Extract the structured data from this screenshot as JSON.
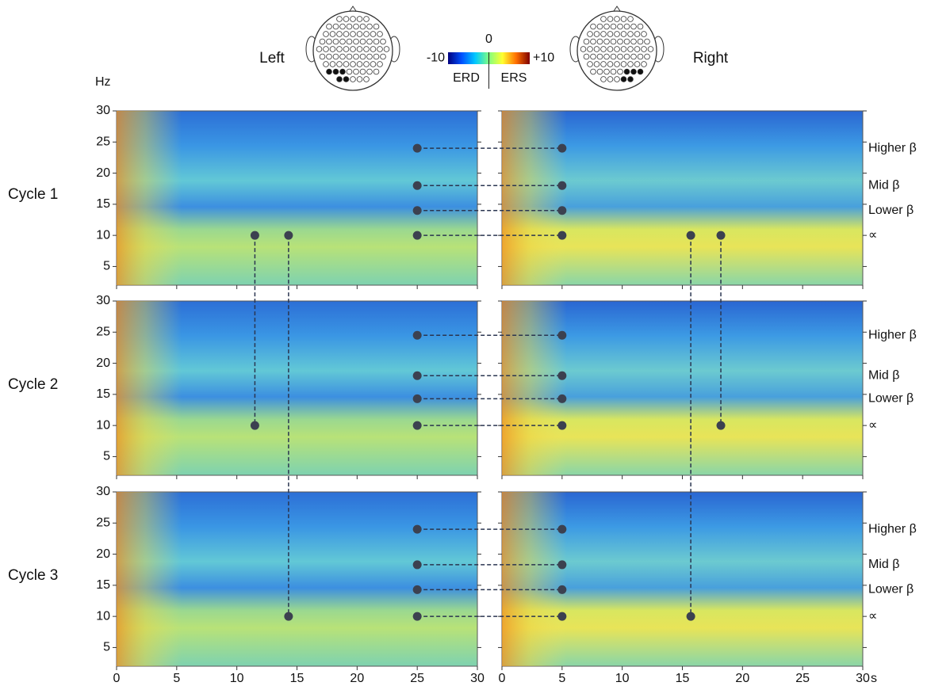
{
  "chart_data": {
    "type": "spectrogram",
    "hemispheres": [
      "Left",
      "Right"
    ],
    "y_label": "Hz",
    "x_unit": "s",
    "xlim": [
      0,
      30
    ],
    "xticks": [
      0,
      5,
      10,
      15,
      20,
      25,
      30
    ],
    "ylim": [
      2,
      30
    ],
    "yticks": [
      5,
      10,
      15,
      20,
      25,
      30
    ],
    "colorbar": {
      "lim": [
        -10,
        10
      ],
      "ticks": [
        {
          "value": -10,
          "label": "-10"
        },
        0,
        {
          "value": 10,
          "label": "+10"
        }
      ],
      "labels": [
        "ERD",
        "ERS"
      ],
      "colormap": [
        "#00007f",
        "#0050ff",
        "#00c8ff",
        "#80ff80",
        "#ffff30",
        "#ff7000",
        "#7f0000"
      ]
    },
    "band_markers": [
      25,
      5
    ],
    "cycles": [
      {
        "name": "Cycle 1",
        "bands": [
          {
            "name": "Higher β",
            "value": 24
          },
          {
            "name": "Mid β",
            "value": 18
          },
          {
            "name": "Lower β",
            "value": 14
          },
          {
            "name": "∝",
            "value": 10
          }
        ],
        "alpha_peaks": [
          [
            11.5,
            14.3
          ],
          [
            15.7,
            18.2
          ]
        ]
      },
      {
        "name": "Cycle 2",
        "bands": [
          {
            "name": "Higher β",
            "value": 24.5
          },
          {
            "name": "Mid β",
            "value": 18
          },
          {
            "name": "Lower β",
            "value": 14.3
          },
          {
            "name": "∝",
            "value": 10
          }
        ],
        "alpha_peaks": [
          [
            11.5
          ],
          [
            18.2
          ]
        ]
      },
      {
        "name": "Cycle 3",
        "bands": [
          {
            "name": "Higher β",
            "value": 24
          },
          {
            "name": "Mid β",
            "value": 18.3
          },
          {
            "name": "Lower β",
            "value": 14.3
          },
          {
            "name": "∝",
            "value": 10
          }
        ],
        "alpha_peaks": [
          [
            14.3
          ],
          [
            15.7
          ]
        ]
      }
    ]
  }
}
